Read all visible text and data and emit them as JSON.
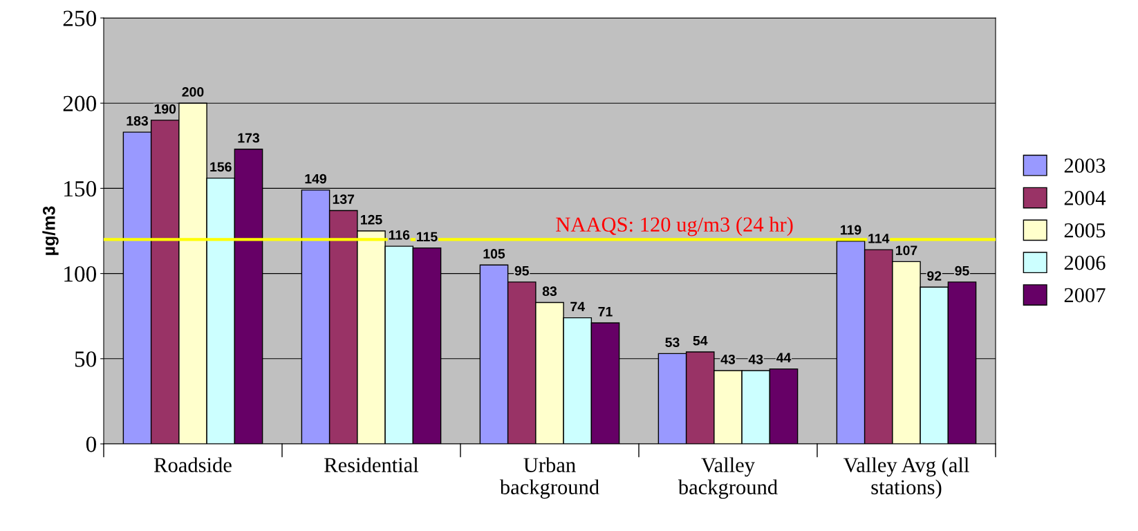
{
  "chart_data": {
    "type": "bar",
    "ylabel": "µg/m3",
    "categories": [
      "Roadside",
      "Residential",
      "Urban\nbackground",
      "Valley\nbackground",
      "Valley Avg (all\nstations)"
    ],
    "series": [
      {
        "name": "2003",
        "color": "#9999ff",
        "values": [
          183,
          149,
          105,
          53,
          119
        ]
      },
      {
        "name": "2004",
        "color": "#993366",
        "values": [
          190,
          137,
          95,
          54,
          114
        ]
      },
      {
        "name": "2005",
        "color": "#ffffcc",
        "values": [
          200,
          125,
          83,
          43,
          107
        ]
      },
      {
        "name": "2006",
        "color": "#ccffff",
        "values": [
          156,
          116,
          74,
          43,
          92
        ]
      },
      {
        "name": "2007",
        "color": "#660066",
        "values": [
          173,
          115,
          71,
          44,
          95
        ]
      }
    ],
    "ylim": [
      0,
      250
    ],
    "yticks": [
      0,
      50,
      100,
      150,
      200,
      250
    ],
    "grid": "y",
    "legend": "right",
    "data_labels": true,
    "ref_lines": [
      {
        "axis": "y",
        "value": 120,
        "label": "NAAQS: 120 ug/m3 (24 hr)",
        "color": "#ffff00"
      }
    ]
  }
}
